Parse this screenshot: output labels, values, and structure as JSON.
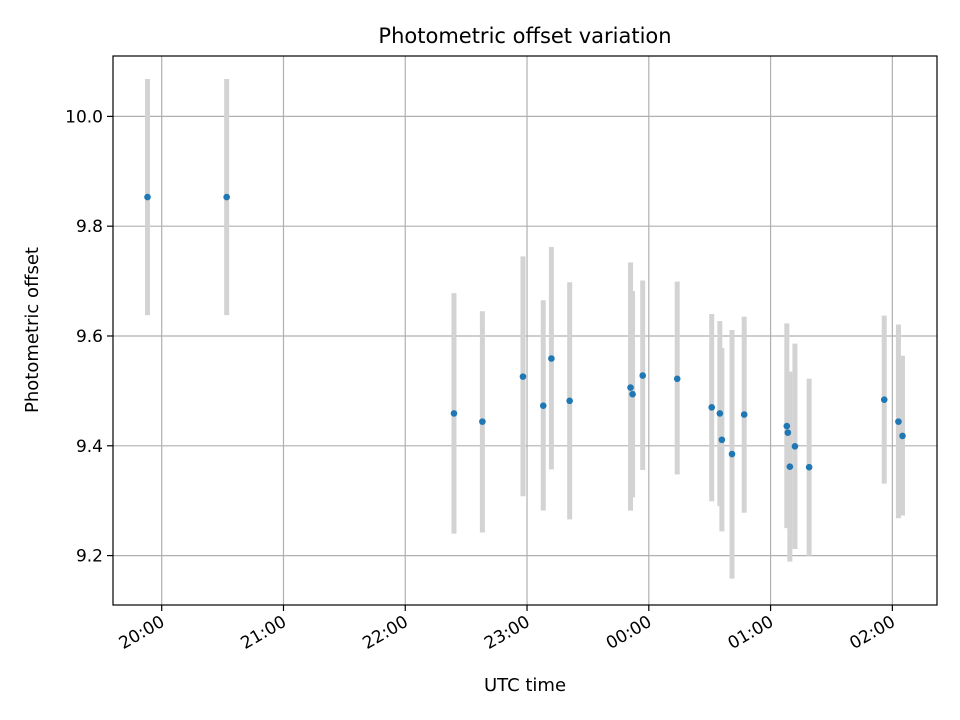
{
  "chart_data": {
    "type": "scatter",
    "title": "Photometric offset variation",
    "xlabel": "UTC time",
    "ylabel": "Photometric offset",
    "x_axis": "time",
    "xlim": [
      "2000-01-01T19:36:00",
      "2000-01-02T02:22:00"
    ],
    "ylim": [
      9.11,
      10.11
    ],
    "x_ticks": [
      {
        "t": "2000-01-01T20:00:00",
        "label": "20:00"
      },
      {
        "t": "2000-01-01T21:00:00",
        "label": "21:00"
      },
      {
        "t": "2000-01-01T22:00:00",
        "label": "22:00"
      },
      {
        "t": "2000-01-01T23:00:00",
        "label": "23:00"
      },
      {
        "t": "2000-01-02T00:00:00",
        "label": "00:00"
      },
      {
        "t": "2000-01-02T01:00:00",
        "label": "01:00"
      },
      {
        "t": "2000-01-02T02:00:00",
        "label": "02:00"
      }
    ],
    "y_ticks": [
      {
        "v": 9.2,
        "label": "9.2"
      },
      {
        "v": 9.4,
        "label": "9.4"
      },
      {
        "v": 9.6,
        "label": "9.6"
      },
      {
        "v": 9.8,
        "label": "9.8"
      },
      {
        "v": 10.0,
        "label": "10.0"
      }
    ],
    "grid": true,
    "marker_color": "#1f77b4",
    "errorbar_color": "#d3d3d3",
    "points": [
      {
        "t": "2000-01-01T19:53:00",
        "y": 9.853,
        "lo": 9.638,
        "hi": 10.068
      },
      {
        "t": "2000-01-01T20:32:00",
        "y": 9.853,
        "lo": 9.638,
        "hi": 10.068
      },
      {
        "t": "2000-01-01T22:24:00",
        "y": 9.459,
        "lo": 9.24,
        "hi": 9.678
      },
      {
        "t": "2000-01-01T22:38:00",
        "y": 9.444,
        "lo": 9.242,
        "hi": 9.645
      },
      {
        "t": "2000-01-01T22:58:00",
        "y": 9.526,
        "lo": 9.308,
        "hi": 9.745
      },
      {
        "t": "2000-01-01T23:08:00",
        "y": 9.473,
        "lo": 9.282,
        "hi": 9.665
      },
      {
        "t": "2000-01-01T23:12:00",
        "y": 9.559,
        "lo": 9.357,
        "hi": 9.762
      },
      {
        "t": "2000-01-01T23:21:00",
        "y": 9.482,
        "lo": 9.266,
        "hi": 9.698
      },
      {
        "t": "2000-01-01T23:51:00",
        "y": 9.506,
        "lo": 9.282,
        "hi": 9.734
      },
      {
        "t": "2000-01-01T23:52:00",
        "y": 9.494,
        "lo": 9.306,
        "hi": 9.682
      },
      {
        "t": "2000-01-01T23:57:00",
        "y": 9.528,
        "lo": 9.356,
        "hi": 9.701
      },
      {
        "t": "2000-01-02T00:14:00",
        "y": 9.522,
        "lo": 9.348,
        "hi": 9.699
      },
      {
        "t": "2000-01-02T00:31:00",
        "y": 9.47,
        "lo": 9.299,
        "hi": 9.64
      },
      {
        "t": "2000-01-02T00:35:00",
        "y": 9.459,
        "lo": 9.29,
        "hi": 9.627
      },
      {
        "t": "2000-01-02T00:36:00",
        "y": 9.411,
        "lo": 9.244,
        "hi": 9.578
      },
      {
        "t": "2000-01-02T00:41:00",
        "y": 9.385,
        "lo": 9.158,
        "hi": 9.611
      },
      {
        "t": "2000-01-02T00:47:00",
        "y": 9.457,
        "lo": 9.278,
        "hi": 9.635
      },
      {
        "t": "2000-01-02T01:08:00",
        "y": 9.436,
        "lo": 9.25,
        "hi": 9.623
      },
      {
        "t": "2000-01-02T01:08:30",
        "y": 9.424,
        "lo": 9.313,
        "hi": 9.535
      },
      {
        "t": "2000-01-02T01:09:30",
        "y": 9.362,
        "lo": 9.189,
        "hi": 9.535
      },
      {
        "t": "2000-01-02T01:12:00",
        "y": 9.399,
        "lo": 9.212,
        "hi": 9.586
      },
      {
        "t": "2000-01-02T01:19:00",
        "y": 9.361,
        "lo": 9.2,
        "hi": 9.522
      },
      {
        "t": "2000-01-02T01:56:00",
        "y": 9.484,
        "lo": 9.331,
        "hi": 9.637
      },
      {
        "t": "2000-01-02T02:03:00",
        "y": 9.444,
        "lo": 9.268,
        "hi": 9.621
      },
      {
        "t": "2000-01-02T02:05:00",
        "y": 9.418,
        "lo": 9.273,
        "hi": 9.564
      }
    ]
  }
}
